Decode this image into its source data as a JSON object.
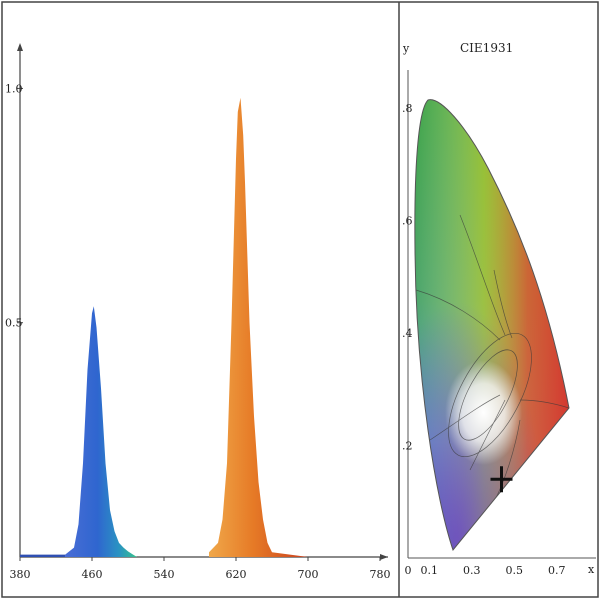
{
  "chart_data": [
    {
      "type": "area",
      "x_ticks": [
        "380",
        "460",
        "540",
        "620",
        "700",
        "780"
      ],
      "y_ticks": [
        "1.0",
        "0.5"
      ],
      "xlim": [
        380,
        780
      ],
      "ylim": [
        0,
        1.05
      ],
      "series": [
        {
          "x": [
            380,
            430,
            440,
            445,
            450,
            455,
            460,
            462,
            465,
            470,
            475,
            480,
            485,
            490,
            495,
            500,
            505,
            510,
            540,
            590,
            600,
            605,
            610,
            615,
            620,
            622,
            625,
            628,
            630,
            635,
            640,
            645,
            650,
            655,
            660,
            700,
            780
          ],
          "y": [
            0.005,
            0.005,
            0.02,
            0.07,
            0.2,
            0.4,
            0.52,
            0.535,
            0.49,
            0.36,
            0.2,
            0.1,
            0.055,
            0.03,
            0.02,
            0.012,
            0.006,
            0.0,
            0.0,
            0.01,
            0.03,
            0.08,
            0.2,
            0.5,
            0.85,
            0.95,
            0.98,
            0.9,
            0.8,
            0.5,
            0.3,
            0.16,
            0.08,
            0.03,
            0.01,
            0.0,
            0.0
          ]
        }
      ],
      "colors": {
        "blue_peak": "#2f66cf",
        "cyan_tail": "#36b29b",
        "orange_peak": "#e67a26",
        "red_tail": "#c9401f"
      }
    },
    {
      "type": "scatter",
      "title": "CIE1931",
      "xlabel": "x",
      "ylabel": "y",
      "x_ticks": [
        "0",
        "0.1",
        "0.3",
        "0.5",
        "0.7"
      ],
      "y_ticks": [
        ".8",
        ".6",
        ".4",
        ".2"
      ],
      "xlim": [
        0,
        0.8
      ],
      "ylim": [
        0,
        0.85
      ],
      "marker": {
        "x": 0.44,
        "y": 0.14
      },
      "colors": {
        "green": "#2e8f2e",
        "yellow": "#d6d61a",
        "red": "#d52b2b",
        "blue": "#2f4fb2",
        "white": "#ffffff"
      }
    }
  ]
}
